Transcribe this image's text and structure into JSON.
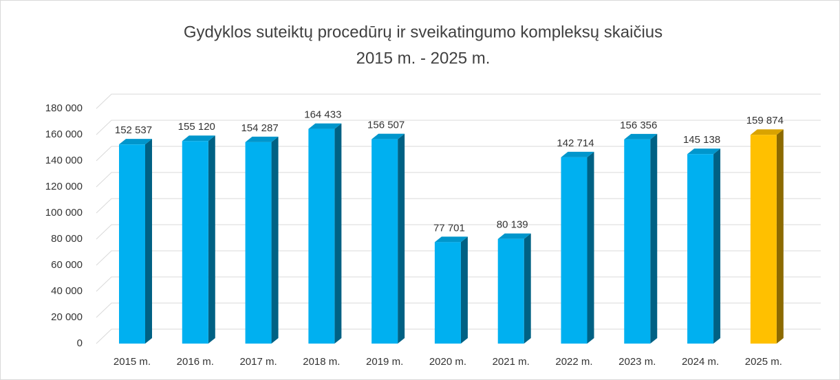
{
  "chart_data": {
    "type": "bar3d",
    "title": [
      "Gydyklos suteiktų procedūrų ir sveikatingumo kompleksų skaičius",
      "2015 m. - 2025 m."
    ],
    "categories": [
      "2015 m.",
      "2016 m.",
      "2017 m.",
      "2018 m.",
      "2019 m.",
      "2020 m.",
      "2021 m.",
      "2022 m.",
      "2023 m.",
      "2024 m.",
      "2025 m."
    ],
    "values": [
      152537,
      155120,
      154287,
      164433,
      156507,
      77701,
      80139,
      142714,
      156356,
      145138,
      159874
    ],
    "value_labels": [
      "152 537",
      "155 120",
      "154 287",
      "164 433",
      "156 507",
      "77 701",
      "80 139",
      "142 714",
      "156 356",
      "145 138",
      "159 874"
    ],
    "colors": [
      "#00b0f0",
      "#00b0f0",
      "#00b0f0",
      "#00b0f0",
      "#00b0f0",
      "#00b0f0",
      "#00b0f0",
      "#00b0f0",
      "#00b0f0",
      "#00b0f0",
      "#ffc000"
    ],
    "ylim": [
      0,
      180000
    ],
    "yticks": [
      0,
      {
        "value": 20000,
        "label": "20 000"
      },
      {
        "value": 40000,
        "label": "40 000"
      },
      {
        "value": 60000,
        "label": "60 000"
      },
      {
        "value": 80000,
        "label": "80 000"
      },
      {
        "value": 100000,
        "label": "100 000"
      },
      {
        "value": 120000,
        "label": "120 000"
      },
      {
        "value": 140000,
        "label": "140 000"
      },
      {
        "value": 160000,
        "label": "160 000"
      },
      {
        "value": 180000,
        "label": "180 000"
      }
    ],
    "grid": true
  }
}
